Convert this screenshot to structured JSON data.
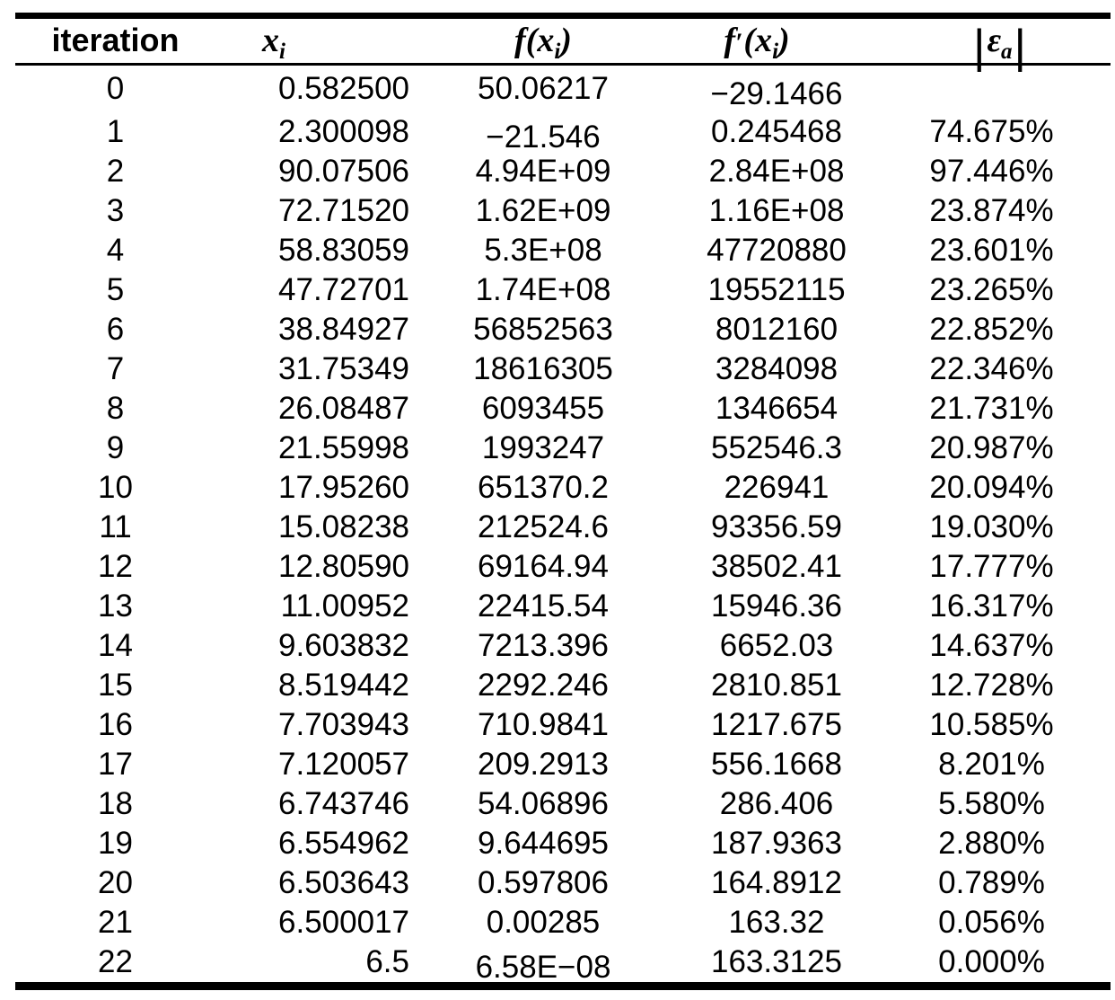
{
  "table": {
    "description": "Newton-Raphson iteration results table",
    "colors": {
      "text": "#000000",
      "background": "#ffffff",
      "rule": "#000000"
    },
    "columns": [
      {
        "label": "iteration"
      },
      {
        "var": "x",
        "sub": "i"
      },
      {
        "f": "f",
        "prime": "",
        "open": "(",
        "var": "x",
        "sub": "i",
        "close": ")"
      },
      {
        "f": "f",
        "prime": "′",
        "open": "(",
        "var": "x",
        "sub": "i",
        "close": ")"
      },
      {
        "bar": "|",
        "var": "ε",
        "sub": "a"
      }
    ],
    "rows": [
      {
        "cells": [
          "0",
          "0.582500",
          "50.06217",
          "−29.1466",
          ""
        ]
      },
      {
        "cells": [
          "1",
          "2.300098",
          "−21.546",
          "0.245468",
          "74.675%"
        ]
      },
      {
        "cells": [
          "2",
          "90.07506",
          "4.94E+09",
          "2.84E+08",
          "97.446%"
        ]
      },
      {
        "cells": [
          "3",
          "72.71520",
          "1.62E+09",
          "1.16E+08",
          "23.874%"
        ]
      },
      {
        "cells": [
          "4",
          "58.83059",
          "5.3E+08",
          "47720880",
          "23.601%"
        ]
      },
      {
        "cells": [
          "5",
          "47.72701",
          "1.74E+08",
          "19552115",
          "23.265%"
        ]
      },
      {
        "cells": [
          "6",
          "38.84927",
          "56852563",
          "8012160",
          "22.852%"
        ]
      },
      {
        "cells": [
          "7",
          "31.75349",
          "18616305",
          "3284098",
          "22.346%"
        ]
      },
      {
        "cells": [
          "8",
          "26.08487",
          "6093455",
          "1346654",
          "21.731%"
        ]
      },
      {
        "cells": [
          "9",
          "21.55998",
          "1993247",
          "552546.3",
          "20.987%"
        ]
      },
      {
        "cells": [
          "10",
          "17.95260",
          "651370.2",
          "226941",
          "20.094%"
        ]
      },
      {
        "cells": [
          "11",
          "15.08238",
          "212524.6",
          "93356.59",
          "19.030%"
        ]
      },
      {
        "cells": [
          "12",
          "12.80590",
          "69164.94",
          "38502.41",
          "17.777%"
        ]
      },
      {
        "cells": [
          "13",
          "11.00952",
          "22415.54",
          "15946.36",
          "16.317%"
        ]
      },
      {
        "cells": [
          "14",
          "9.603832",
          "7213.396",
          "6652.03",
          "14.637%"
        ]
      },
      {
        "cells": [
          "15",
          "8.519442",
          "2292.246",
          "2810.851",
          "12.728%"
        ]
      },
      {
        "cells": [
          "16",
          "7.703943",
          "710.9841",
          "1217.675",
          "10.585%"
        ]
      },
      {
        "cells": [
          "17",
          "7.120057",
          "209.2913",
          "556.1668",
          "8.201%"
        ]
      },
      {
        "cells": [
          "18",
          "6.743746",
          "54.06896",
          "286.406",
          "5.580%"
        ]
      },
      {
        "cells": [
          "19",
          "6.554962",
          "9.644695",
          "187.9363",
          "2.880%"
        ]
      },
      {
        "cells": [
          "20",
          "6.503643",
          "0.597806",
          "164.8912",
          "0.789%"
        ]
      },
      {
        "cells": [
          "21",
          "6.500017",
          "0.00285",
          "163.32",
          "0.056%"
        ]
      },
      {
        "cells": [
          "22",
          "6.5",
          "6.58E−08",
          "163.3125",
          "0.000%"
        ]
      }
    ],
    "baseline_shifted_cells": [
      [
        0,
        3
      ],
      [
        1,
        2
      ],
      [
        22,
        2
      ]
    ]
  }
}
